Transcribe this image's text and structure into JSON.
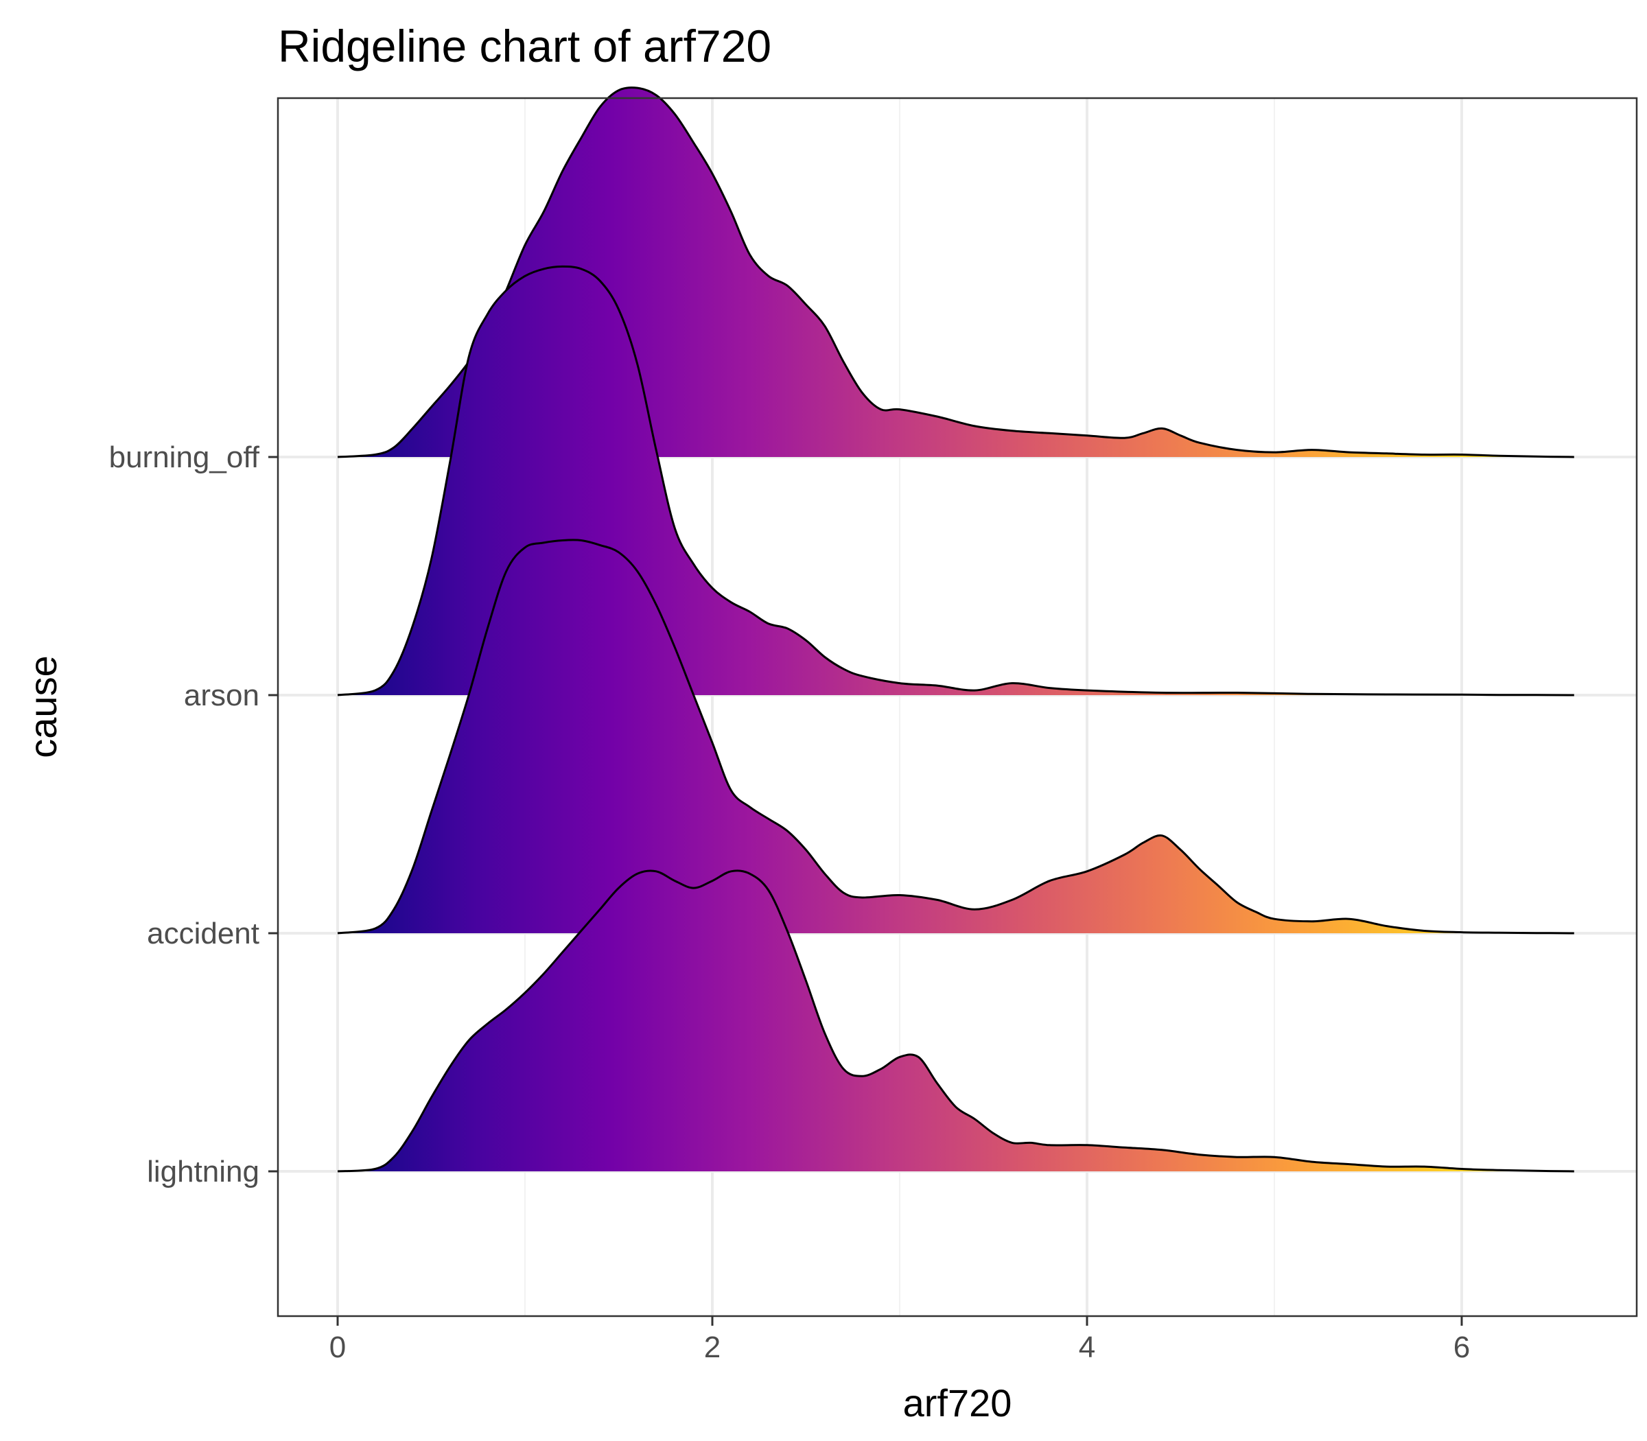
{
  "chart_data": {
    "type": "ridgeline",
    "title": "Ridgeline chart of arf720",
    "xlabel": "arf720",
    "ylabel": "cause",
    "xlim": [
      -0.3,
      6.75
    ],
    "x_ticks": [
      0,
      2,
      4,
      6
    ],
    "x_tick_labels": [
      "0",
      "2",
      "4",
      "6"
    ],
    "grid": true,
    "fill_gradient": {
      "along": "x",
      "palette": "plasma",
      "range": [
        0,
        6.6
      ],
      "colors": [
        "#0d0887",
        "#47039f",
        "#7301a8",
        "#9c179e",
        "#bd3786",
        "#d8576b",
        "#ed7953",
        "#fb9f3a",
        "#fdca26",
        "#f0f921"
      ]
    },
    "density_scale_note": "relative ridge height, 1 = category spacing",
    "categories": [
      "lightning",
      "accident",
      "arson",
      "burning_off"
    ],
    "series": [
      {
        "name": "lightning",
        "x": [
          0,
          0.2,
          0.3,
          0.4,
          0.5,
          0.6,
          0.7,
          0.8,
          0.9,
          1.0,
          1.1,
          1.2,
          1.3,
          1.4,
          1.5,
          1.6,
          1.7,
          1.8,
          1.9,
          2.0,
          2.1,
          2.2,
          2.3,
          2.4,
          2.5,
          2.6,
          2.7,
          2.8,
          2.9,
          3.0,
          3.1,
          3.2,
          3.3,
          3.4,
          3.5,
          3.6,
          3.7,
          3.8,
          4.0,
          4.2,
          4.4,
          4.6,
          4.8,
          5.0,
          5.2,
          5.4,
          5.6,
          5.8,
          6.0,
          6.2,
          6.4,
          6.6
        ],
        "y": [
          0,
          0.01,
          0.06,
          0.17,
          0.31,
          0.44,
          0.55,
          0.62,
          0.68,
          0.75,
          0.83,
          0.92,
          1.01,
          1.1,
          1.19,
          1.25,
          1.26,
          1.22,
          1.19,
          1.22,
          1.26,
          1.25,
          1.18,
          1.01,
          0.8,
          0.58,
          0.43,
          0.4,
          0.43,
          0.48,
          0.48,
          0.37,
          0.27,
          0.22,
          0.16,
          0.12,
          0.12,
          0.11,
          0.11,
          0.1,
          0.09,
          0.07,
          0.06,
          0.06,
          0.04,
          0.03,
          0.02,
          0.02,
          0.01,
          0.005,
          0.002,
          0
        ]
      },
      {
        "name": "accident",
        "x": [
          0,
          0.2,
          0.3,
          0.4,
          0.5,
          0.6,
          0.7,
          0.8,
          0.9,
          1.0,
          1.1,
          1.2,
          1.3,
          1.4,
          1.5,
          1.6,
          1.7,
          1.8,
          1.9,
          2.0,
          2.1,
          2.2,
          2.3,
          2.4,
          2.5,
          2.6,
          2.7,
          2.8,
          3.0,
          3.2,
          3.4,
          3.6,
          3.8,
          4.0,
          4.2,
          4.3,
          4.4,
          4.5,
          4.6,
          4.7,
          4.8,
          4.9,
          5.0,
          5.2,
          5.4,
          5.6,
          5.8,
          6.0,
          6.2,
          6.4,
          6.6
        ],
        "y": [
          0,
          0.02,
          0.1,
          0.27,
          0.51,
          0.75,
          1.0,
          1.28,
          1.52,
          1.62,
          1.64,
          1.65,
          1.65,
          1.63,
          1.6,
          1.52,
          1.38,
          1.2,
          1.0,
          0.8,
          0.6,
          0.53,
          0.48,
          0.43,
          0.35,
          0.25,
          0.17,
          0.15,
          0.16,
          0.14,
          0.1,
          0.14,
          0.22,
          0.26,
          0.33,
          0.38,
          0.41,
          0.35,
          0.27,
          0.2,
          0.13,
          0.09,
          0.06,
          0.05,
          0.06,
          0.03,
          0.01,
          0.004,
          0.002,
          0.001,
          0
        ]
      },
      {
        "name": "arson",
        "x": [
          0,
          0.2,
          0.3,
          0.4,
          0.5,
          0.6,
          0.7,
          0.8,
          0.9,
          1.0,
          1.1,
          1.2,
          1.3,
          1.4,
          1.5,
          1.6,
          1.7,
          1.8,
          1.9,
          2.0,
          2.1,
          2.2,
          2.3,
          2.4,
          2.5,
          2.6,
          2.7,
          2.8,
          3.0,
          3.2,
          3.4,
          3.6,
          3.8,
          4.0,
          4.4,
          4.8,
          5.2,
          5.6,
          6.0,
          6.2,
          6.4,
          6.6
        ],
        "y": [
          0,
          0.02,
          0.1,
          0.29,
          0.57,
          0.98,
          1.42,
          1.6,
          1.7,
          1.76,
          1.79,
          1.8,
          1.79,
          1.74,
          1.62,
          1.39,
          1.03,
          0.7,
          0.55,
          0.45,
          0.39,
          0.35,
          0.3,
          0.28,
          0.23,
          0.16,
          0.11,
          0.08,
          0.05,
          0.04,
          0.02,
          0.05,
          0.03,
          0.02,
          0.01,
          0.01,
          0.005,
          0.003,
          0.002,
          0.001,
          0.0005,
          0
        ]
      },
      {
        "name": "burning_off",
        "x": [
          0,
          0.2,
          0.3,
          0.4,
          0.5,
          0.6,
          0.7,
          0.8,
          0.9,
          1.0,
          1.1,
          1.2,
          1.3,
          1.4,
          1.5,
          1.6,
          1.7,
          1.8,
          1.9,
          2.0,
          2.1,
          2.2,
          2.3,
          2.4,
          2.5,
          2.6,
          2.7,
          2.8,
          2.9,
          3.0,
          3.2,
          3.4,
          3.6,
          3.8,
          4.0,
          4.2,
          4.3,
          4.4,
          4.5,
          4.6,
          4.8,
          5.0,
          5.2,
          5.4,
          5.6,
          5.8,
          6.0,
          6.2,
          6.4,
          6.6
        ],
        "y": [
          0,
          0.01,
          0.04,
          0.12,
          0.21,
          0.3,
          0.4,
          0.52,
          0.7,
          0.89,
          1.03,
          1.2,
          1.34,
          1.47,
          1.54,
          1.55,
          1.52,
          1.44,
          1.32,
          1.19,
          1.03,
          0.85,
          0.76,
          0.72,
          0.64,
          0.55,
          0.4,
          0.27,
          0.2,
          0.2,
          0.17,
          0.13,
          0.11,
          0.1,
          0.09,
          0.08,
          0.1,
          0.12,
          0.09,
          0.06,
          0.03,
          0.02,
          0.03,
          0.02,
          0.015,
          0.01,
          0.01,
          0.005,
          0.002,
          0
        ]
      }
    ]
  }
}
